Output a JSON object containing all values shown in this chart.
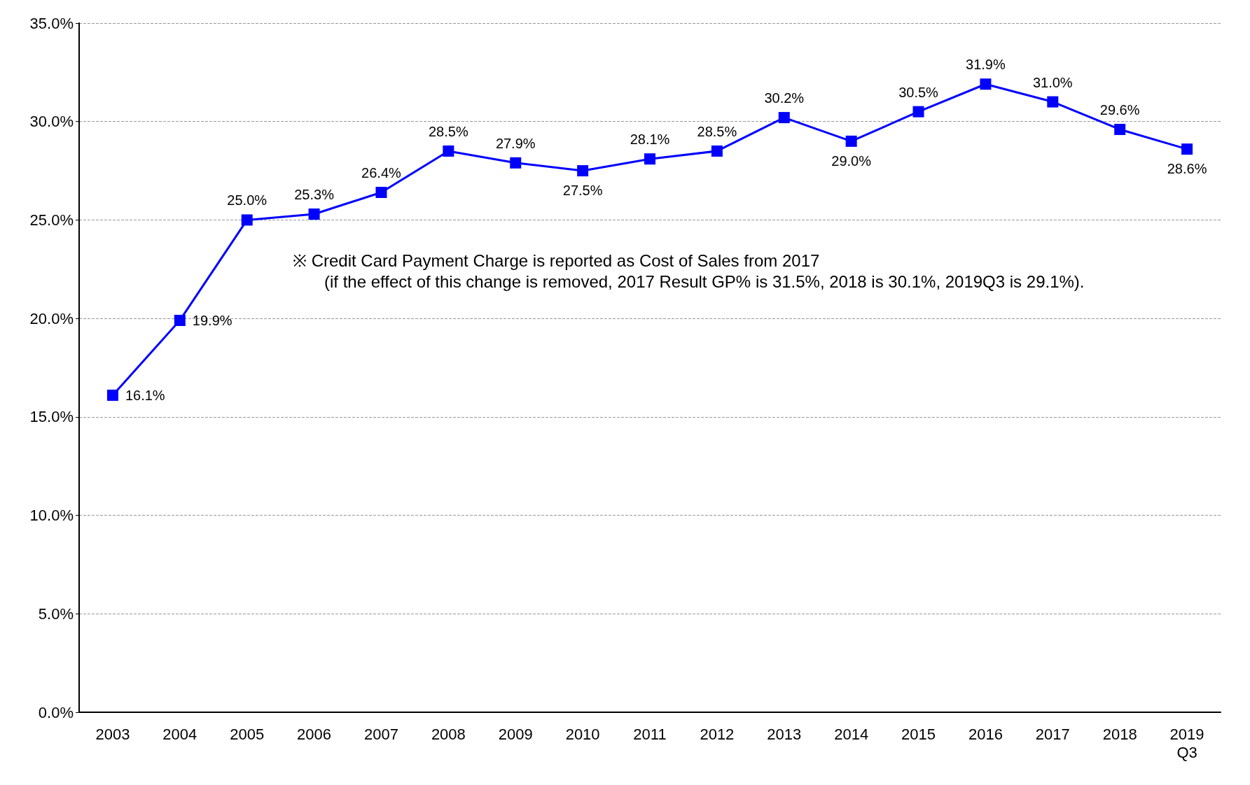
{
  "chart_data": {
    "type": "line",
    "categories": [
      "2003",
      "2004",
      "2005",
      "2006",
      "2007",
      "2008",
      "2009",
      "2010",
      "2011",
      "2012",
      "2013",
      "2014",
      "2015",
      "2016",
      "2017",
      "2018",
      "2019\nQ3"
    ],
    "series": [
      {
        "color": "#0000ff",
        "values": [
          16.1,
          19.9,
          25.0,
          25.3,
          26.4,
          28.5,
          27.9,
          27.5,
          28.1,
          28.5,
          30.2,
          29.0,
          30.5,
          31.9,
          31.0,
          29.6,
          28.6
        ],
        "value_labels": [
          "16.1%",
          "19.9%",
          "25.0%",
          "25.3%",
          "26.4%",
          "28.5%",
          "27.9%",
          "27.5%",
          "28.1%",
          "28.5%",
          "30.2%",
          "29.0%",
          "30.5%",
          "31.9%",
          "31.0%",
          "29.6%",
          "28.6%"
        ]
      }
    ],
    "ylim": [
      0,
      35
    ],
    "yticks": [
      {
        "value": 0,
        "label": "0.0%"
      },
      {
        "value": 5,
        "label": "5.0%"
      },
      {
        "value": 10,
        "label": "10.0%"
      },
      {
        "value": 15,
        "label": "15.0%"
      },
      {
        "value": 20,
        "label": "20.0%"
      },
      {
        "value": 25,
        "label": "25.0%"
      },
      {
        "value": 30,
        "label": "30.0%"
      },
      {
        "value": 35,
        "label": "35.0%"
      }
    ],
    "grid": "y",
    "marker": "square",
    "line_style": "solid",
    "annotations": [
      "※ Credit Card Payment Charge is reported as Cost of Sales from 2017",
      "(if the effect of this change is removed, 2017 Result GP% is 31.5%, 2018 is 30.1%, 2019Q3 is 29.1%)."
    ]
  }
}
